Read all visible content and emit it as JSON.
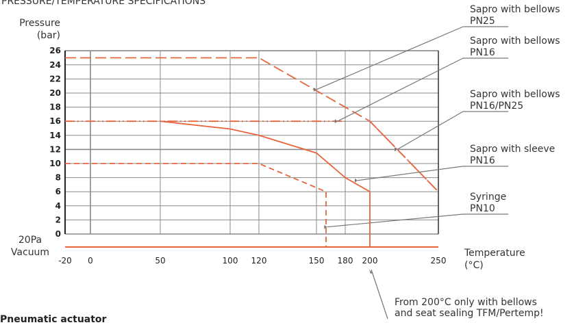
{
  "header": {
    "title": "PRESSURE/TEMPERATURE SPECIFICATIONS"
  },
  "section_heading": "Pneumatic actuator",
  "chart_data": {
    "type": "line",
    "ylabel_lines": [
      "Pressure",
      "(bar)"
    ],
    "xlabel_lines": [
      "Temperature",
      "(°C)"
    ],
    "vacuum_label_lines": [
      "20Pa",
      "Vacuum"
    ],
    "y_ticks": [
      0,
      2,
      4,
      6,
      8,
      10,
      12,
      14,
      16,
      18,
      20,
      22,
      24,
      26
    ],
    "x_ticks": [
      "-20",
      "0",
      "50",
      "100",
      "120",
      "150",
      "180",
      "200",
      "250"
    ],
    "ylim": [
      -3,
      26
    ],
    "colors": {
      "curve": "#e8643c",
      "grid": "#888888",
      "axis": "#222222",
      "pointer": "#777777"
    },
    "series": [
      {
        "name": "Sapro with bellows PN25",
        "style": "long-dash",
        "points": [
          [
            -20,
            25
          ],
          [
            120,
            25
          ],
          [
            200,
            16
          ],
          [
            250,
            6
          ]
        ]
      },
      {
        "name": "Sapro with bellows PN16",
        "style": "dash-dot-dot",
        "points": [
          [
            -20,
            16
          ],
          [
            180,
            16
          ]
        ]
      },
      {
        "name": "Sapro with bellows PN16/PN25",
        "style": "dash-dot-dot",
        "points": [
          [
            200,
            16
          ],
          [
            250,
            6
          ]
        ]
      },
      {
        "name": "Sapro with sleeve PN16",
        "style": "solid",
        "points": [
          [
            50,
            16
          ],
          [
            100,
            14.9
          ],
          [
            120,
            14
          ],
          [
            150,
            11.5
          ],
          [
            180,
            8
          ],
          [
            200,
            6
          ],
          [
            200,
            -3
          ]
        ]
      },
      {
        "name": "Syringe PN10",
        "style": "dash",
        "points": [
          [
            -20,
            10
          ],
          [
            120,
            10
          ],
          [
            160,
            6
          ],
          [
            160,
            -3
          ]
        ]
      }
    ],
    "labels": [
      {
        "lines": [
          "Sapro with bellows",
          "PN25"
        ],
        "target": [
          150,
          20.5
        ]
      },
      {
        "lines": [
          "Sapro with bellows",
          "PN16"
        ],
        "target": [
          172,
          16
        ]
      },
      {
        "lines": [
          "Sapro with bellows",
          "PN16/PN25"
        ],
        "target": [
          220,
          12
        ]
      },
      {
        "lines": [
          "Sapro with sleeve",
          "PN16"
        ],
        "target": [
          190,
          7.6
        ]
      },
      {
        "lines": [
          "Syringe",
          "PN10"
        ],
        "target": [
          161,
          1
        ]
      }
    ],
    "annotation": {
      "lines": [
        "From 200°C only with bellows",
        "and seat sealing TFM/Pertemp!"
      ],
      "target_x": 200
    }
  }
}
